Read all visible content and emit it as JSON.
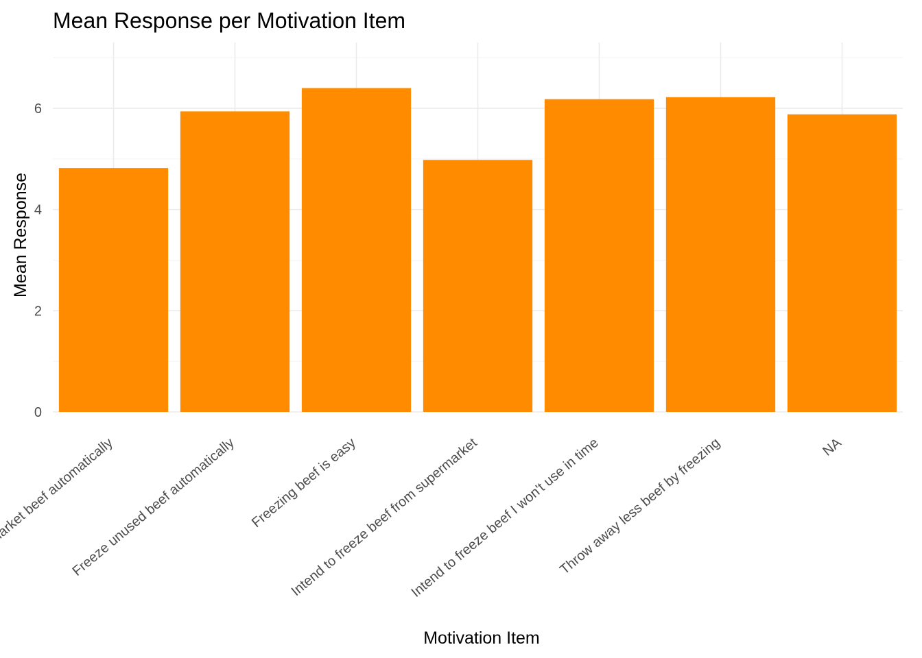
{
  "chart_data": {
    "type": "bar",
    "title": "Mean Response per Motivation Item",
    "xlabel": "Motivation Item",
    "ylabel": "Mean Response",
    "categories": [
      "Freeze supermarket beef automatically",
      "Freeze unused beef automatically",
      "Freezing beef is easy",
      "Intend to freeze beef from supermarket",
      "Intend to freeze beef I won't use in time",
      "Throw away less beef by freezing",
      "NA"
    ],
    "values": [
      4.82,
      5.94,
      6.4,
      4.98,
      6.18,
      6.22,
      5.88
    ],
    "ylim": [
      0,
      7.3
    ],
    "yticks": [
      0,
      2,
      4,
      6
    ],
    "bar_color": "#FF8C00",
    "grid": true,
    "legend": "none"
  }
}
